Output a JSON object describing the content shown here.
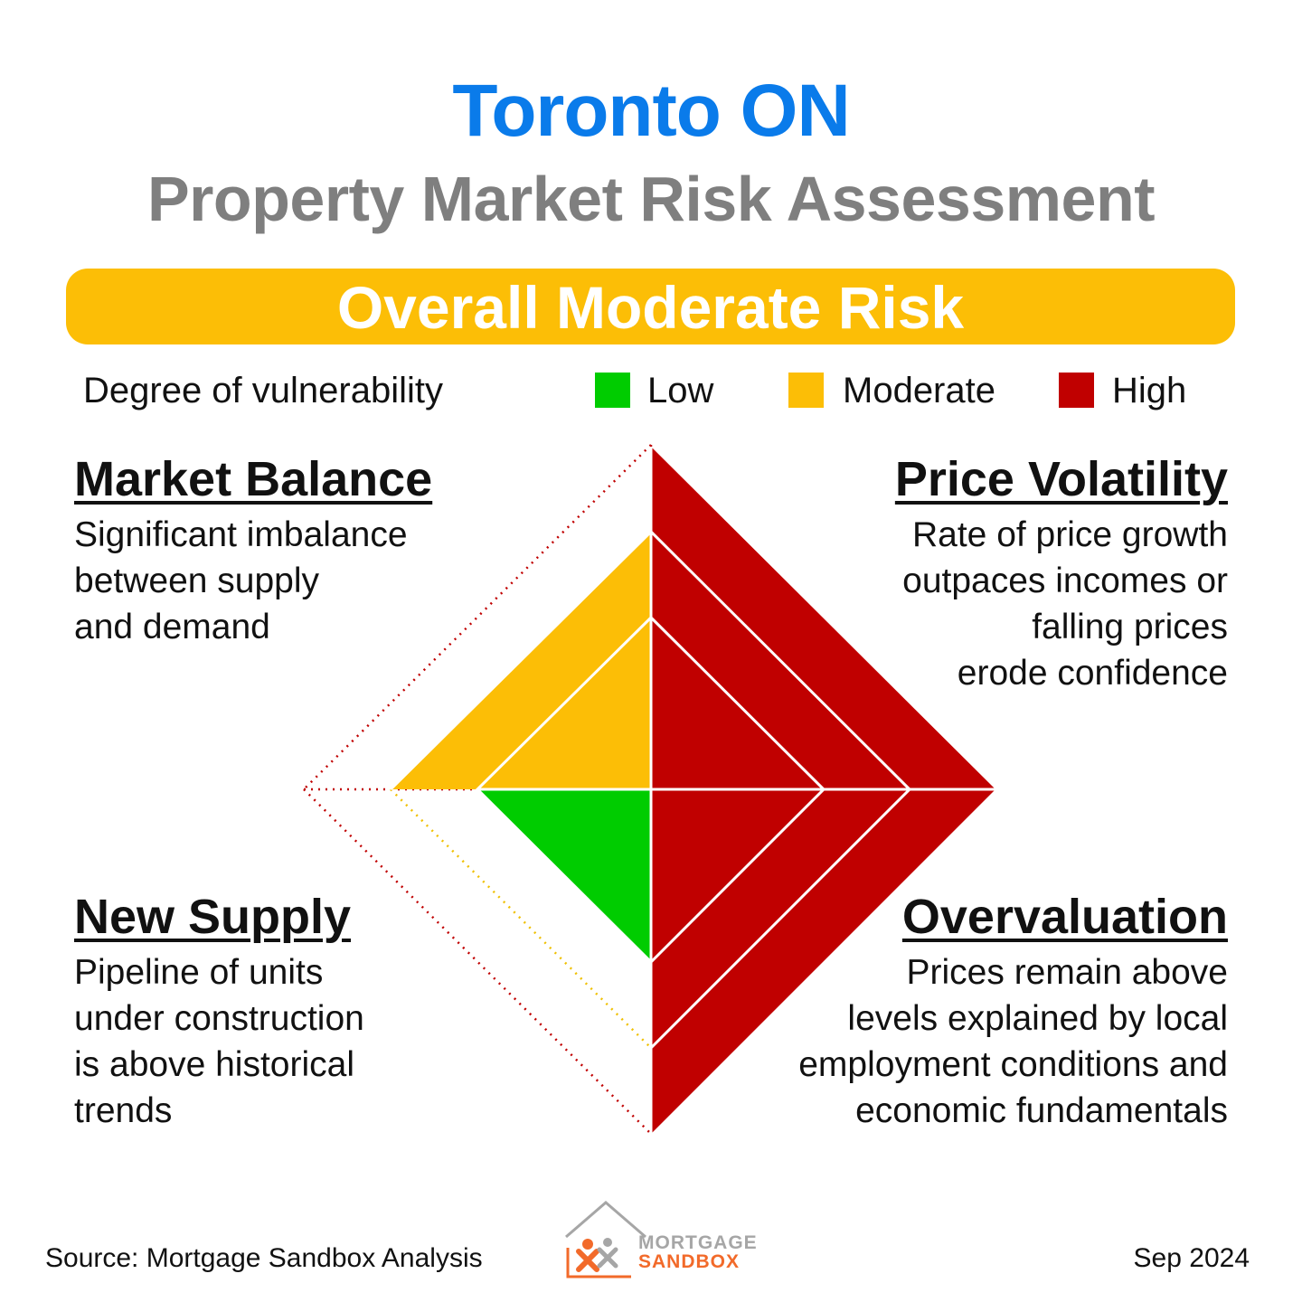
{
  "header": {
    "title": "Toronto ON",
    "subtitle": "Property Market Risk Assessment",
    "overall": "Overall Moderate Risk"
  },
  "legend": {
    "label": "Degree of vulnerability",
    "items": [
      {
        "label": "Low",
        "color": "#00CC00"
      },
      {
        "label": "Moderate",
        "color": "#FCBE06"
      },
      {
        "label": "High",
        "color": "#C00000"
      }
    ]
  },
  "categories": {
    "market_balance": {
      "title": "Market Balance",
      "desc": [
        "Significant imbalance",
        "between supply",
        "and demand"
      ],
      "level": "Moderate"
    },
    "price_volatility": {
      "title": "Price Volatility",
      "desc": [
        "Rate of price growth",
        "outpaces incomes or",
        "falling prices",
        "erode confidence"
      ],
      "level": "High"
    },
    "new_supply": {
      "title": "New Supply",
      "desc": [
        "Pipeline of units",
        "under construction",
        "is above historical",
        "trends"
      ],
      "level": "Low"
    },
    "overvaluation": {
      "title": "Overvaluation",
      "desc": [
        "Prices remain above",
        "levels explained by local",
        "employment conditions and",
        "economic fundamentals"
      ],
      "level": "High"
    }
  },
  "footer": {
    "source": "Source: Mortgage Sandbox Analysis",
    "date": "Sep 2024",
    "logo_line1": "MORTGAGE",
    "logo_line2": "SANDBOX"
  },
  "colors": {
    "title": "#0A7BEA",
    "subtitle": "#7F7F7F",
    "banner": "#FCBE06",
    "low": "#00CC00",
    "moderate": "#FCBE06",
    "high": "#C00000"
  }
}
